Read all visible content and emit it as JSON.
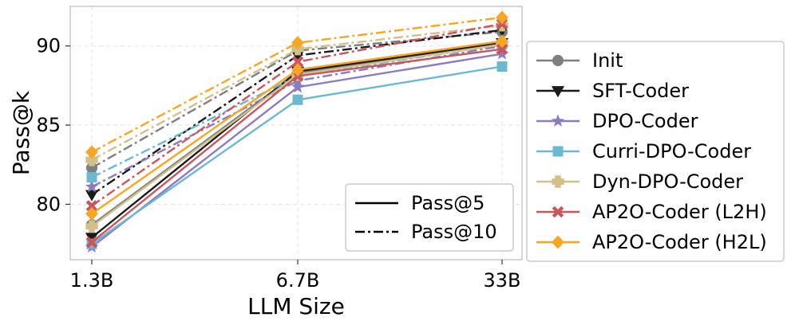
{
  "chart_data": {
    "type": "line",
    "title": "",
    "xlabel": "LLM Size",
    "ylabel": "Pass@k",
    "categories": [
      "1.3B",
      "6.7B",
      "33B"
    ],
    "ylim": [
      76.5,
      92.5
    ],
    "yticks": [
      80,
      85,
      90
    ],
    "grid": true,
    "series": [
      {
        "name": "Init",
        "color": "#7f7f7f",
        "marker": "circle",
        "pass5": [
          78.7,
          88.3,
          90.1
        ],
        "pass10": [
          82.3,
          89.7,
          90.9
        ]
      },
      {
        "name": "SFT-Coder",
        "color": "#1a1a1a",
        "marker": "triangle-down",
        "pass5": [
          77.9,
          88.4,
          90.2
        ],
        "pass10": [
          80.6,
          89.4,
          91.0
        ]
      },
      {
        "name": "DPO-Coder",
        "color": "#8c7bbf",
        "marker": "star",
        "pass5": [
          77.3,
          87.4,
          89.5
        ],
        "pass10": [
          81.1,
          87.8,
          90.0
        ]
      },
      {
        "name": "Curri-DPO-Coder",
        "color": "#6bb8cf",
        "marker": "square",
        "pass5": [
          77.5,
          86.6,
          88.7
        ],
        "pass10": [
          81.7,
          88.1,
          90.1
        ]
      },
      {
        "name": "Dyn-DPO-Coder",
        "color": "#d2c08a",
        "marker": "plus",
        "pass5": [
          78.6,
          88.2,
          90.1
        ],
        "pass10": [
          82.8,
          89.8,
          91.3
        ]
      },
      {
        "name": "AP2O-Coder (L2H)",
        "color": "#c9565c",
        "marker": "x",
        "pass5": [
          77.6,
          88.1,
          89.8
        ],
        "pass10": [
          79.9,
          89.0,
          91.4
        ]
      },
      {
        "name": "AP2O-Coder (H2L)",
        "color": "#f5a623",
        "marker": "diamond",
        "pass5": [
          79.4,
          88.5,
          90.3
        ],
        "pass10": [
          83.3,
          90.2,
          91.8
        ]
      }
    ],
    "style_legend": [
      {
        "label": "Pass@5",
        "dash": "solid"
      },
      {
        "label": "Pass@10",
        "dash": "dashdot"
      }
    ]
  }
}
